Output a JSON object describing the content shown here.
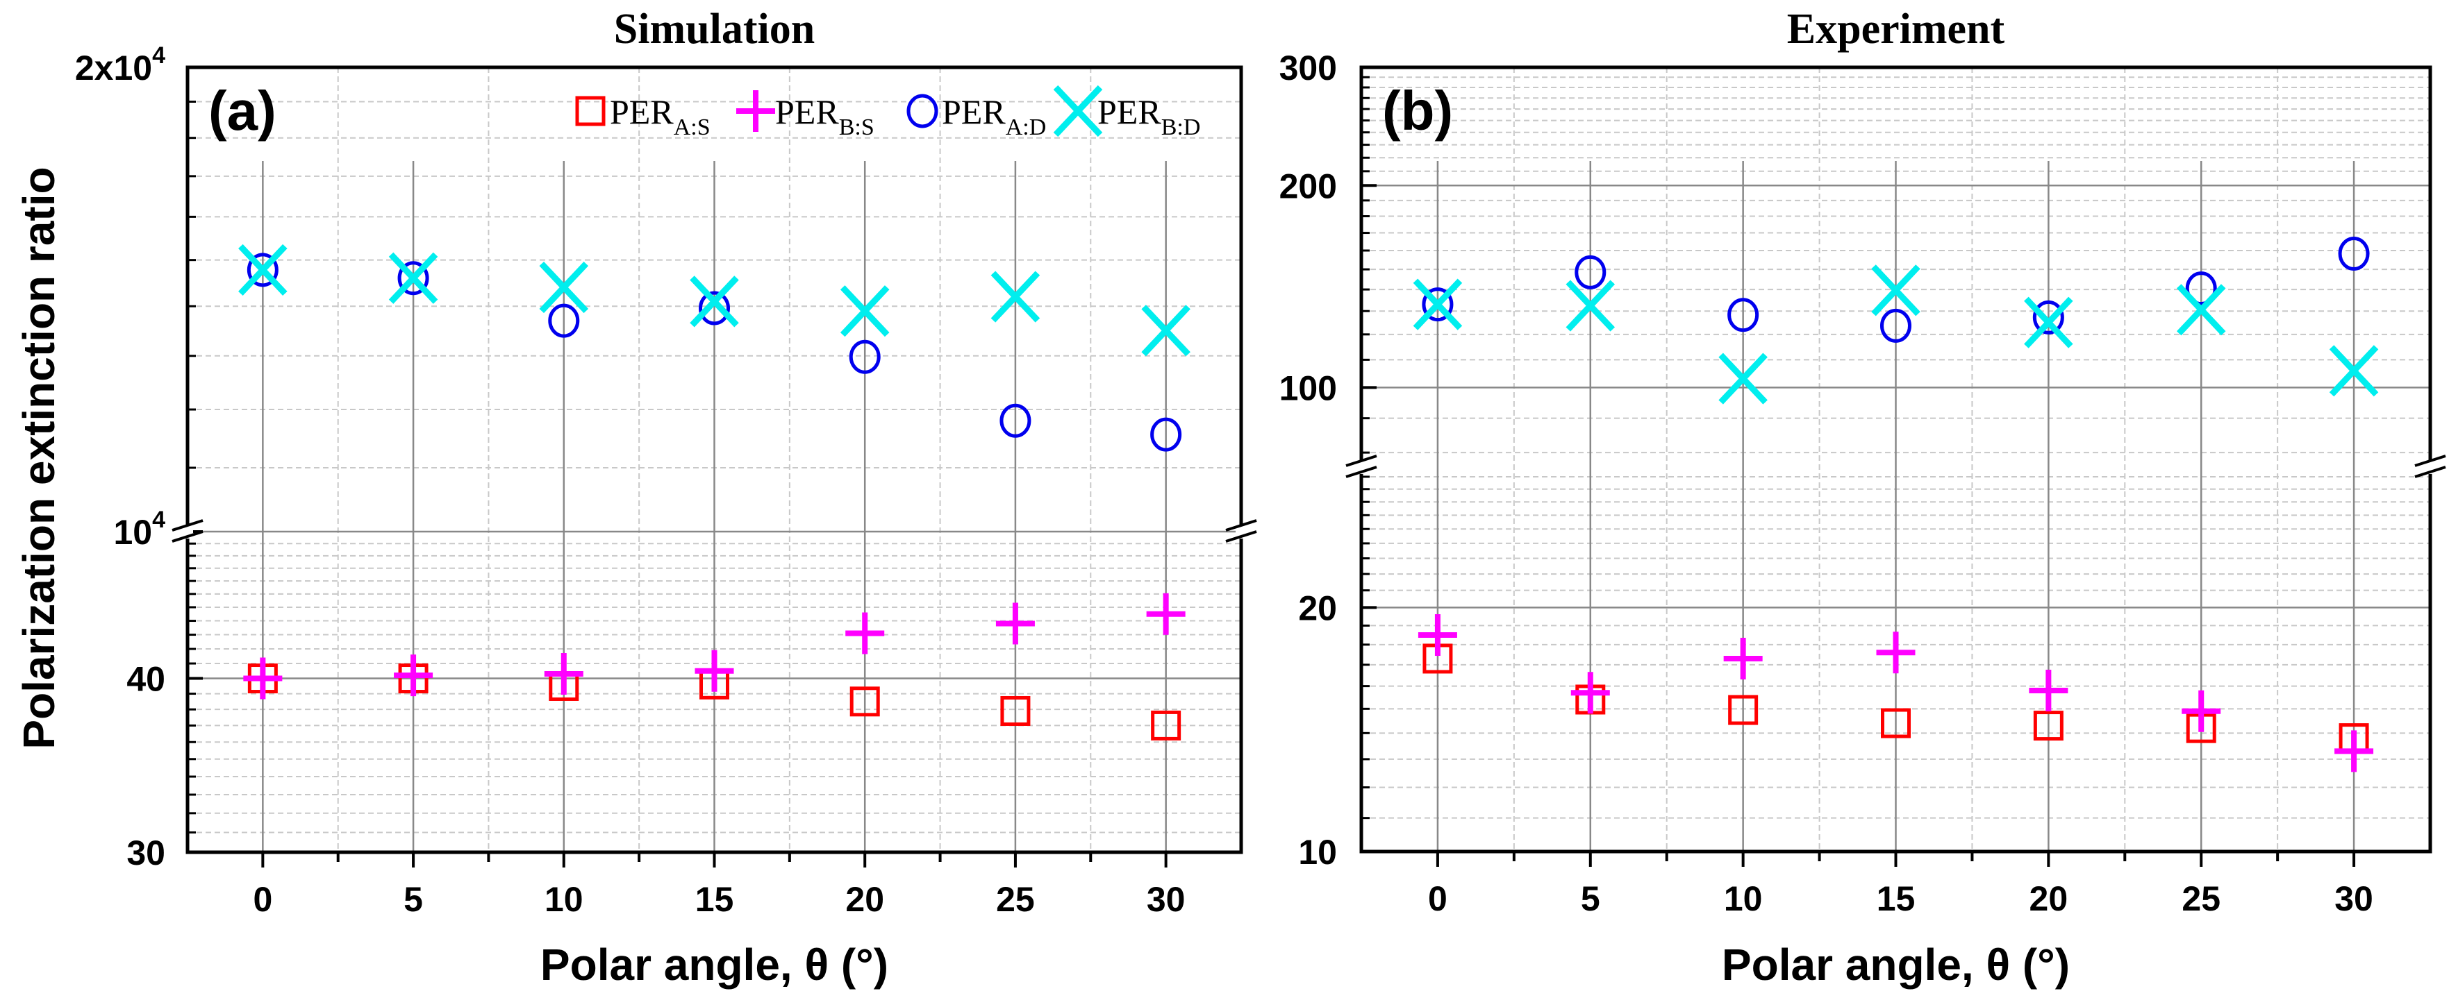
{
  "chart_data": [
    {
      "type": "scatter",
      "title": "Simulation",
      "panel_label": "(a)",
      "xlabel": "Polar angle, θ (°)",
      "ylabel": "Polarization extinction ratio",
      "y_scale": "log, broken axis",
      "xlim": [
        -2.5,
        32.5
      ],
      "x_ticks": [
        0,
        5,
        10,
        15,
        20,
        25,
        30
      ],
      "ylim_upper": [
        10000,
        20000
      ],
      "ylim_lower": [
        30,
        51
      ],
      "y_ticks_upper": [
        {
          "value": 20000,
          "label": "2x10",
          "sup": "4"
        },
        {
          "value": 10000,
          "label": "10",
          "sup": "4"
        }
      ],
      "y_ticks_lower": [
        {
          "value": 40,
          "label": "40"
        },
        {
          "value": 30,
          "label": "30"
        }
      ],
      "grid": true,
      "legend": {
        "placement": "top-right"
      },
      "series": [
        {
          "name": "PER",
          "sub": "A:S",
          "color": "#ff0000",
          "marker": "square",
          "segment": "lower",
          "x": [
            0,
            5,
            10,
            15,
            20,
            25,
            30
          ],
          "values": [
            40.0,
            40.0,
            39.5,
            39.6,
            38.5,
            37.9,
            37.0
          ]
        },
        {
          "name": "PER",
          "sub": "B:S",
          "color": "#ff00ff",
          "marker": "plus",
          "segment": "lower",
          "x": [
            0,
            5,
            10,
            15,
            20,
            25,
            30
          ],
          "values": [
            40.0,
            40.2,
            40.3,
            40.5,
            43.1,
            43.8,
            44.5
          ]
        },
        {
          "name": "PER",
          "sub": "A:D",
          "color": "#0000ee",
          "marker": "circle",
          "segment": "upper",
          "x": [
            0,
            5,
            10,
            15,
            20,
            25,
            30
          ],
          "values": [
            14780,
            14600,
            13700,
            13960,
            12980,
            11800,
            11560
          ]
        },
        {
          "name": "PER",
          "sub": "B:D",
          "color": "#00eeee",
          "marker": "x",
          "segment": "upper",
          "x": [
            0,
            5,
            10,
            15,
            20,
            25,
            30
          ],
          "values": [
            14780,
            14600,
            14400,
            14100,
            13900,
            14200,
            13500
          ]
        }
      ]
    },
    {
      "type": "scatter",
      "title": "Experiment",
      "panel_label": "(b)",
      "xlabel": "Polar angle, θ (°)",
      "y_scale": "log, broken axis",
      "xlim": [
        -2.5,
        32.5
      ],
      "x_ticks": [
        0,
        5,
        10,
        15,
        20,
        25,
        30
      ],
      "ylim_upper": [
        77.4,
        300
      ],
      "ylim_lower": [
        10,
        29.4
      ],
      "y_ticks_upper": [
        {
          "value": 300,
          "label": "300"
        },
        {
          "value": 200,
          "label": "200"
        },
        {
          "value": 100,
          "label": "100"
        }
      ],
      "y_ticks_lower": [
        {
          "value": 20,
          "label": "20"
        },
        {
          "value": 10,
          "label": "10"
        }
      ],
      "grid": true,
      "series": [
        {
          "name": "PER",
          "sub": "A:S",
          "color": "#ff0000",
          "marker": "square",
          "segment": "lower",
          "x": [
            0,
            5,
            10,
            15,
            20,
            25,
            30
          ],
          "values": [
            17.3,
            15.4,
            14.95,
            14.4,
            14.3,
            14.2,
            13.8
          ]
        },
        {
          "name": "PER",
          "sub": "B:S",
          "color": "#ff00ff",
          "marker": "plus",
          "segment": "lower",
          "x": [
            0,
            5,
            10,
            15,
            20,
            25,
            30
          ],
          "values": [
            18.5,
            15.7,
            17.3,
            17.6,
            15.8,
            14.9,
            13.3
          ]
        },
        {
          "name": "PER",
          "sub": "A:D",
          "color": "#0000ee",
          "marker": "circle",
          "segment": "upper",
          "x": [
            0,
            5,
            10,
            15,
            20,
            25,
            30
          ],
          "values": [
            133,
            148.5,
            128.3,
            123.6,
            127.2,
            140.5,
            158.3
          ]
        },
        {
          "name": "PER",
          "sub": "B:D",
          "color": "#00eeee",
          "marker": "x",
          "segment": "upper",
          "x": [
            0,
            5,
            10,
            15,
            20,
            25,
            30
          ],
          "values": [
            133,
            132.4,
            103.1,
            139.6,
            125,
            130.6,
            105.9
          ]
        }
      ]
    }
  ]
}
